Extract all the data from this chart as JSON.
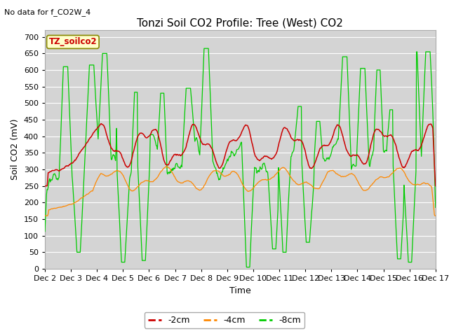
{
  "title": "Tonzi Soil CO2 Profile: Tree (West) CO2",
  "subtitle": "No data for f_CO2W_4",
  "ylabel": "Soil CO2 (mV)",
  "xlabel": "Time",
  "legend_label": "TZ_soilco2",
  "ylim": [
    0,
    720
  ],
  "yticks": [
    0,
    50,
    100,
    150,
    200,
    250,
    300,
    350,
    400,
    450,
    500,
    550,
    600,
    650,
    700
  ],
  "xtick_labels": [
    "Dec 2",
    "Dec 3",
    "Dec 4",
    "Dec 5",
    "Dec 6",
    "Dec 7",
    "Dec 8",
    "Dec 9",
    "Dec 10",
    "Dec 11",
    "Dec 12",
    "Dec 13",
    "Dec 14",
    "Dec 15",
    "Dec 16",
    "Dec 17"
  ],
  "line_neg2cm_color": "#cc0000",
  "line_neg4cm_color": "#ff8800",
  "line_neg8cm_color": "#00cc00",
  "legend_entries": [
    "-2cm",
    "-4cm",
    "-8cm"
  ],
  "fig_bg_color": "#ffffff",
  "plot_bg_color": "#d4d4d4",
  "grid_color": "#ffffff",
  "title_fontsize": 11,
  "axis_fontsize": 9,
  "tick_fontsize": 8,
  "legend_label_color": "#cc0000"
}
